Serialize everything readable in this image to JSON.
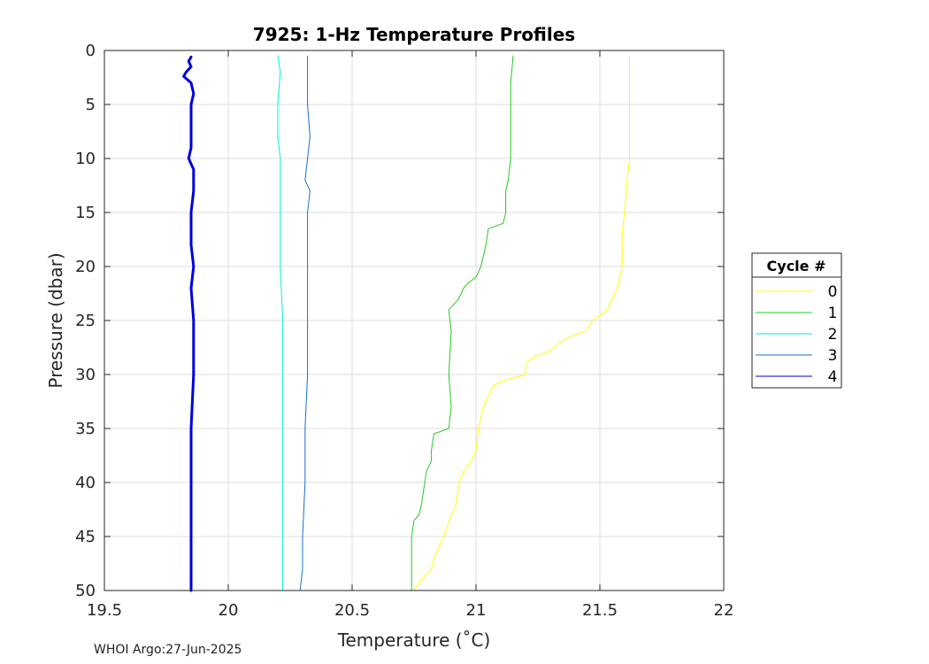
{
  "chart_data": {
    "type": "line",
    "title": "7925: 1-Hz Temperature Profiles",
    "xlabel": "Temperature (˚C)",
    "ylabel": "Pressure (dbar)",
    "xlim": [
      19.5,
      22
    ],
    "ylim": [
      0,
      50
    ],
    "y_reversed": true,
    "grid": true,
    "x_ticks": [
      "19.5",
      "20",
      "20.5",
      "21",
      "21.5",
      "22"
    ],
    "y_ticks": [
      "0",
      "5",
      "10",
      "15",
      "20",
      "25",
      "30",
      "35",
      "40",
      "45",
      "50"
    ],
    "legend": {
      "title": "Cycle #",
      "placement": "outside-right"
    },
    "series": [
      {
        "name": "0",
        "color": "#ffff00",
        "width": 1,
        "points": [
          [
            21.62,
            0.5
          ],
          [
            21.62,
            5
          ],
          [
            21.62,
            10
          ],
          [
            21.61,
            12
          ],
          [
            21.6,
            15
          ],
          [
            21.59,
            17
          ],
          [
            21.59,
            20
          ],
          [
            21.57,
            22
          ],
          [
            21.55,
            23
          ],
          [
            21.53,
            24
          ],
          [
            21.47,
            25
          ],
          [
            21.44,
            26
          ],
          [
            21.38,
            26.5
          ],
          [
            21.34,
            27
          ],
          [
            21.3,
            27.8
          ],
          [
            21.24,
            28.3
          ],
          [
            21.2,
            29
          ],
          [
            21.2,
            30
          ],
          [
            21.12,
            30.5
          ],
          [
            21.07,
            31
          ],
          [
            21.05,
            32
          ],
          [
            21.03,
            33
          ],
          [
            21.01,
            35
          ],
          [
            21.0,
            37
          ],
          [
            20.98,
            38
          ],
          [
            20.95,
            39
          ],
          [
            20.93,
            40
          ],
          [
            20.92,
            42
          ],
          [
            20.9,
            43
          ],
          [
            20.87,
            45
          ],
          [
            20.85,
            46
          ],
          [
            20.83,
            47
          ],
          [
            20.82,
            48
          ],
          [
            20.78,
            49
          ],
          [
            20.75,
            50
          ]
        ]
      },
      {
        "name": "1",
        "color": "#22cc22",
        "width": 1,
        "points": [
          [
            21.15,
            0.5
          ],
          [
            21.14,
            3
          ],
          [
            21.14,
            7
          ],
          [
            21.14,
            10
          ],
          [
            21.13,
            12
          ],
          [
            21.12,
            13
          ],
          [
            21.12,
            15
          ],
          [
            21.11,
            16
          ],
          [
            21.05,
            16.5
          ],
          [
            21.04,
            18
          ],
          [
            21.02,
            20
          ],
          [
            21.0,
            21
          ],
          [
            20.97,
            21.5
          ],
          [
            20.95,
            22
          ],
          [
            20.93,
            23
          ],
          [
            20.91,
            23.5
          ],
          [
            20.89,
            24
          ],
          [
            20.9,
            26
          ],
          [
            20.89,
            30
          ],
          [
            20.9,
            33
          ],
          [
            20.89,
            35
          ],
          [
            20.83,
            35.5
          ],
          [
            20.82,
            37
          ],
          [
            20.82,
            38
          ],
          [
            20.8,
            39
          ],
          [
            20.78,
            42
          ],
          [
            20.77,
            43
          ],
          [
            20.75,
            43.5
          ],
          [
            20.74,
            45
          ],
          [
            20.74,
            50
          ]
        ]
      },
      {
        "name": "2",
        "color": "#00eedd",
        "width": 1,
        "points": [
          [
            20.2,
            0.5
          ],
          [
            20.21,
            2
          ],
          [
            20.2,
            5
          ],
          [
            20.2,
            8
          ],
          [
            20.21,
            10
          ],
          [
            20.21,
            15
          ],
          [
            20.21,
            20
          ],
          [
            20.22,
            25
          ],
          [
            20.22,
            30
          ],
          [
            20.22,
            35
          ],
          [
            20.22,
            40
          ],
          [
            20.22,
            45
          ],
          [
            20.22,
            50
          ]
        ]
      },
      {
        "name": "3",
        "color": "#1a6fcc",
        "width": 1,
        "points": [
          [
            20.32,
            0.5
          ],
          [
            20.32,
            5
          ],
          [
            20.33,
            8
          ],
          [
            20.32,
            10
          ],
          [
            20.31,
            12
          ],
          [
            20.33,
            13
          ],
          [
            20.32,
            15
          ],
          [
            20.32,
            20
          ],
          [
            20.32,
            25
          ],
          [
            20.32,
            30
          ],
          [
            20.31,
            35
          ],
          [
            20.31,
            40
          ],
          [
            20.3,
            45
          ],
          [
            20.3,
            48
          ],
          [
            20.29,
            50
          ]
        ]
      },
      {
        "name": "4",
        "color": "#0000dd",
        "width": 3,
        "points": [
          [
            19.85,
            0.6
          ],
          [
            19.84,
            1
          ],
          [
            19.85,
            1.5
          ],
          [
            19.83,
            2
          ],
          [
            19.82,
            2.4
          ],
          [
            19.85,
            3
          ],
          [
            19.86,
            4
          ],
          [
            19.85,
            5
          ],
          [
            19.85,
            7
          ],
          [
            19.85,
            9
          ],
          [
            19.84,
            10
          ],
          [
            19.86,
            11
          ],
          [
            19.86,
            13
          ],
          [
            19.85,
            15
          ],
          [
            19.85,
            18
          ],
          [
            19.86,
            20
          ],
          [
            19.85,
            22
          ],
          [
            19.86,
            25
          ],
          [
            19.86,
            30
          ],
          [
            19.85,
            35
          ],
          [
            19.85,
            40
          ],
          [
            19.85,
            45
          ],
          [
            19.85,
            50
          ]
        ]
      }
    ]
  },
  "footer": {
    "text": "WHOI Argo:27-Jun-2025"
  }
}
